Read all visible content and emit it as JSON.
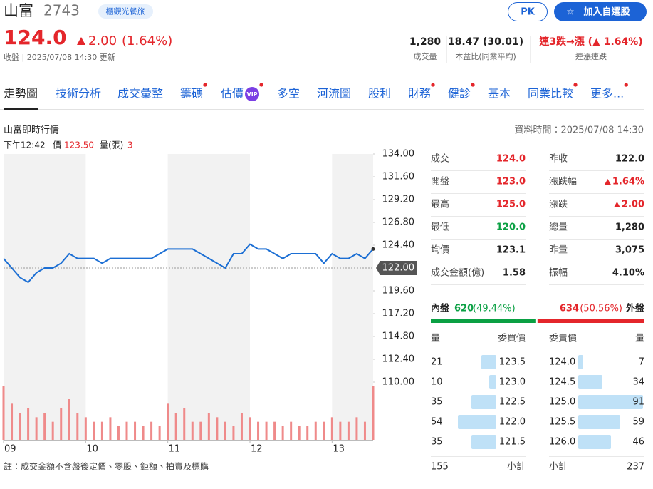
{
  "header": {
    "name": "山富",
    "code": "2743",
    "tag": "櫃觀光餐旅",
    "pk": "PK",
    "add": "加入自選股",
    "price": "124.0",
    "change": "2.00",
    "change_pct": "(1.64%)",
    "status": "收盤 | 2025/07/08 14:30 更新",
    "metrics": [
      {
        "value": "1,280",
        "label": "成交量"
      },
      {
        "value": "18.47 (30.01)",
        "label": "本益比(同業平均)"
      },
      {
        "value": "連3跌→漲 (▲ 1.64%)",
        "label": "連漲連跌"
      }
    ]
  },
  "tabs": [
    {
      "label": "走勢圖"
    },
    {
      "label": "技術分析"
    },
    {
      "label": "成交彙整"
    },
    {
      "label": "籌碼",
      "dot": true
    },
    {
      "label": "估價",
      "badge": "VIP",
      "dot": true
    },
    {
      "label": "多空"
    },
    {
      "label": "河流圖"
    },
    {
      "label": "股利"
    },
    {
      "label": "財務",
      "dot": true
    },
    {
      "label": "健診",
      "dot": true
    },
    {
      "label": "基本"
    },
    {
      "label": "同業比較",
      "dot": true
    },
    {
      "label": "更多...",
      "dot": true
    }
  ],
  "section": {
    "title": "山富即時行情",
    "time": "資料時間：2025/07/08 14:30",
    "hover": {
      "time": "下午12:42",
      "price_label": "價",
      "price": "123.50",
      "volume_label": "量(張)",
      "volume": "3"
    }
  },
  "chart_data": {
    "type": "line",
    "color": "#1c6fd4",
    "x": [
      9,
      9.1,
      9.2,
      9.3,
      9.4,
      9.5,
      9.6,
      9.7,
      9.8,
      9.9,
      10,
      10.1,
      10.2,
      10.3,
      10.4,
      10.5,
      10.6,
      10.7,
      10.8,
      10.9,
      11,
      11.1,
      11.2,
      11.3,
      11.4,
      11.5,
      11.6,
      11.7,
      11.8,
      11.9,
      12,
      12.1,
      12.2,
      12.3,
      12.4,
      12.5,
      12.6,
      12.7,
      12.8,
      12.9,
      13,
      13.1,
      13.2,
      13.3,
      13.4,
      13.5
    ],
    "values": [
      123,
      122,
      121,
      120.5,
      121.5,
      122,
      122,
      122.5,
      123.5,
      123,
      123,
      123,
      122.5,
      123,
      123,
      123,
      123,
      123,
      123,
      123.5,
      124,
      124,
      124,
      124,
      123.5,
      123,
      122.5,
      122,
      123.5,
      123.5,
      124.5,
      124,
      124,
      123.5,
      123,
      123.5,
      123.5,
      123.5,
      123.5,
      122.5,
      123.5,
      123,
      123,
      123.5,
      123,
      124
    ],
    "volume": {
      "color": "#ef8a8a",
      "values": [
        60,
        40,
        30,
        35,
        25,
        30,
        20,
        35,
        45,
        30,
        25,
        20,
        20,
        25,
        15,
        20,
        20,
        15,
        20,
        15,
        40,
        30,
        35,
        20,
        20,
        30,
        25,
        20,
        15,
        30,
        25,
        20,
        20,
        20,
        15,
        20,
        15,
        15,
        20,
        20,
        25,
        20,
        20,
        25,
        20,
        60
      ]
    },
    "xlim": [
      9,
      13.5
    ],
    "xticks": [
      {
        "value": 9,
        "label": "09"
      },
      10,
      11,
      12,
      13
    ],
    "ylim": [
      110,
      134
    ],
    "yticks": [
      {
        "value": 134,
        "label": "134.00"
      },
      {
        "value": 131.6,
        "label": "131.60"
      },
      {
        "value": 129.2,
        "label": "129.20"
      },
      {
        "value": 126.8,
        "label": "126.80"
      },
      {
        "value": 124.4,
        "label": "124.40"
      },
      {
        "value": 119.6,
        "label": "119.60"
      },
      {
        "value": 117.2,
        "label": "117.20"
      },
      {
        "value": 114.8,
        "label": "114.80"
      },
      {
        "value": 112.4,
        "label": "112.40"
      },
      {
        "value": 110,
        "label": "110.00"
      }
    ],
    "reference": {
      "value": 122,
      "label": "122.00"
    }
  },
  "stats": [
    [
      {
        "label": "成交",
        "value": "124.0",
        "color": "#e4262b"
      },
      {
        "label": "昨收",
        "value": "122.0",
        "color": "#222222"
      }
    ],
    [
      {
        "label": "開盤",
        "value": "123.0",
        "color": "#e4262b"
      },
      {
        "label": "漲跌幅",
        "value": "1.64%",
        "color": "#e4262b",
        "arrow": true
      }
    ],
    [
      {
        "label": "最高",
        "value": "125.0",
        "color": "#e4262b"
      },
      {
        "label": "漲跌",
        "value": "2.00",
        "color": "#e4262b",
        "arrow": true
      }
    ],
    [
      {
        "label": "最低",
        "value": "120.0",
        "color": "#0aa043"
      },
      {
        "label": "總量",
        "value": "1,280",
        "color": "#222222"
      }
    ],
    [
      {
        "label": "均價",
        "value": "123.1",
        "color": "#222222"
      },
      {
        "label": "昨量",
        "value": "3,075",
        "color": "#222222"
      }
    ],
    [
      {
        "label": "成交金額(億)",
        "value": "1.58",
        "color": "#222222"
      },
      {
        "label": "振幅",
        "value": "4.10%",
        "color": "#222222"
      }
    ]
  ],
  "order_book": {
    "inner": {
      "label": "內盤",
      "volume": 620,
      "percent": 49.44,
      "percent_label": "(49.44%)",
      "color": "#0aa043"
    },
    "outer": {
      "label": "外盤",
      "volume": 634,
      "percent": 50.56,
      "percent_label": "(50.56%)",
      "color": "#e4262b"
    },
    "bid_header": [
      "量",
      "委買價"
    ],
    "ask_header": [
      "委賣價",
      "量"
    ],
    "bids": [
      {
        "volume": 21,
        "price": "123.5"
      },
      {
        "volume": 10,
        "price": "123.0"
      },
      {
        "volume": 35,
        "price": "122.5"
      },
      {
        "volume": 54,
        "price": "122.0"
      },
      {
        "volume": 35,
        "price": "121.5"
      }
    ],
    "asks": [
      {
        "price": "124.0",
        "volume": 7
      },
      {
        "price": "124.5",
        "volume": 34
      },
      {
        "price": "125.0",
        "volume": 91
      },
      {
        "price": "125.5",
        "volume": 59
      },
      {
        "price": "126.0",
        "volume": 46
      }
    ],
    "bid_total": 155,
    "ask_total": 237,
    "subtotal_label": "小計"
  },
  "note": "註：成交金額不含盤後定價、零股、鉅額、拍賣及標購"
}
